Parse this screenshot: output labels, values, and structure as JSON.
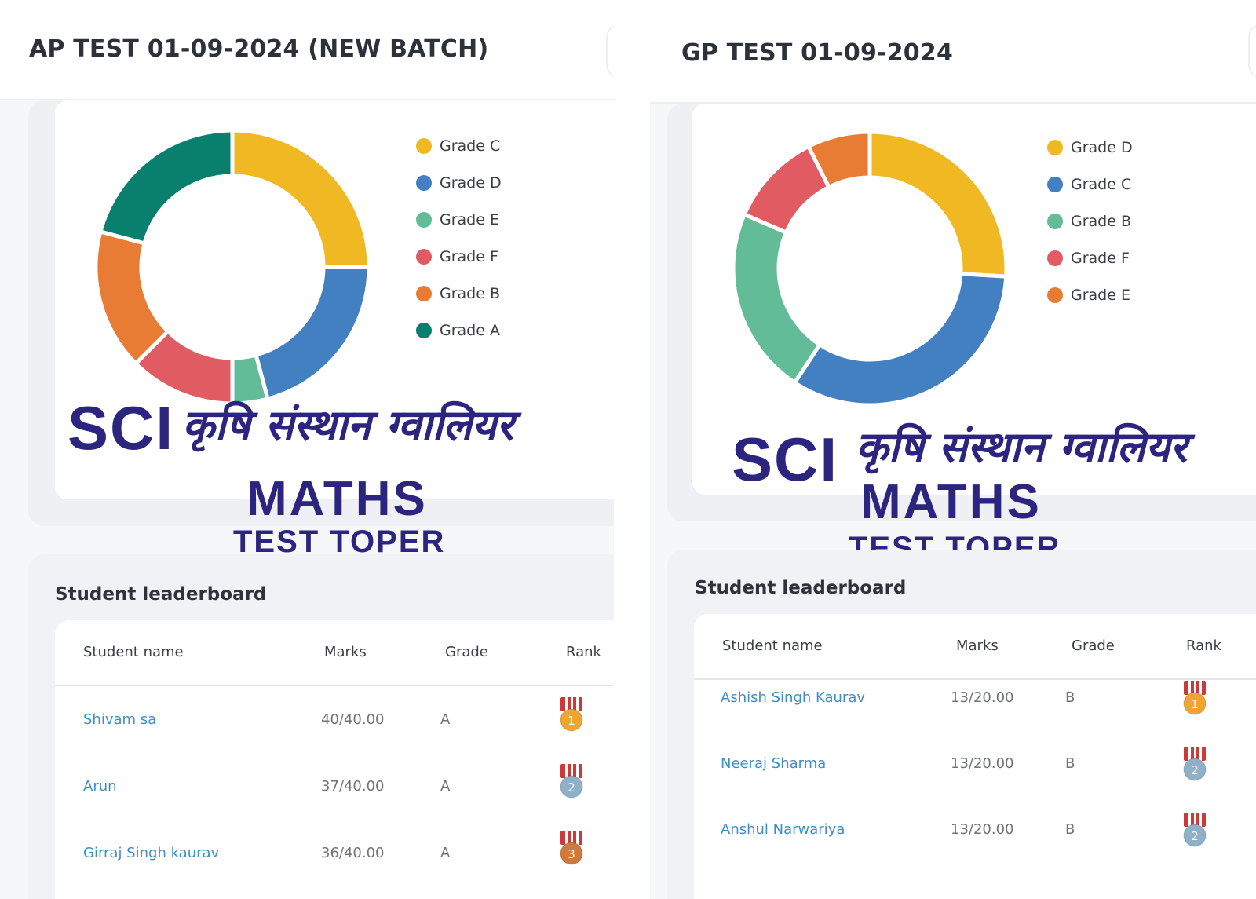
{
  "panels": [
    {
      "title": "AP TEST 01-09-2024 (NEW BATCH)",
      "brand": {
        "sci": "SCI",
        "hindi": "कृषि संस्थान ग्वालियर",
        "subject": "MATHS",
        "tagline": "TEST TOPER"
      },
      "leaderboard": {
        "title": "Student leaderboard",
        "columns": [
          "Student name",
          "Marks",
          "Grade",
          "Rank"
        ],
        "rows": [
          {
            "name": "Shivam sa",
            "marks": "40/40.00",
            "grade": "A",
            "rank": "1"
          },
          {
            "name": "Arun",
            "marks": "37/40.00",
            "grade": "A",
            "rank": "2"
          },
          {
            "name": "Girraj Singh kaurav",
            "marks": "36/40.00",
            "grade": "A",
            "rank": "3"
          }
        ]
      }
    },
    {
      "title": "GP TEST 01-09-2024",
      "brand": {
        "sci": "SCI",
        "hindi": "कृषि संस्थान ग्वालियर",
        "subject": "MATHS",
        "tagline": "TEST TOPER"
      },
      "leaderboard": {
        "title": "Student leaderboard",
        "columns": [
          "Student name",
          "Marks",
          "Grade",
          "Rank"
        ],
        "rows": [
          {
            "name": "Ashish Singh Kaurav",
            "marks": "13/20.00",
            "grade": "B",
            "rank": "1"
          },
          {
            "name": "Neeraj Sharma",
            "marks": "13/20.00",
            "grade": "B",
            "rank": "2"
          },
          {
            "name": "Anshul Narwariya",
            "marks": "13/20.00",
            "grade": "B",
            "rank": "2"
          }
        ]
      }
    }
  ],
  "colors": {
    "brand": "#2b2580",
    "link": "#3d8ec9",
    "medal_gold": "#f0a531",
    "medal_silver": "#8fb0c9",
    "medal_bronze": "#cf7a3b",
    "ribbon": "#cc3a38"
  },
  "icons": {
    "rank_medal": "medal-icon"
  },
  "chart_data": [
    {
      "type": "pie",
      "variant": "donut",
      "legend": "right",
      "categories": [
        "Grade C",
        "Grade D",
        "Grade E",
        "Grade F",
        "Grade B",
        "Grade A"
      ],
      "values": [
        6,
        5,
        1,
        3,
        4,
        5
      ],
      "colors": [
        "#f0b823",
        "#4280c1",
        "#62bc98",
        "#e15b63",
        "#e97c35",
        "#08806d"
      ]
    },
    {
      "type": "pie",
      "variant": "donut",
      "legend": "right",
      "categories": [
        "Grade D",
        "Grade C",
        "Grade B",
        "Grade F",
        "Grade E"
      ],
      "values": [
        7,
        9,
        6,
        3,
        2
      ],
      "colors": [
        "#f0b823",
        "#4280c1",
        "#62bc98",
        "#e15b63",
        "#e97c35"
      ]
    }
  ]
}
